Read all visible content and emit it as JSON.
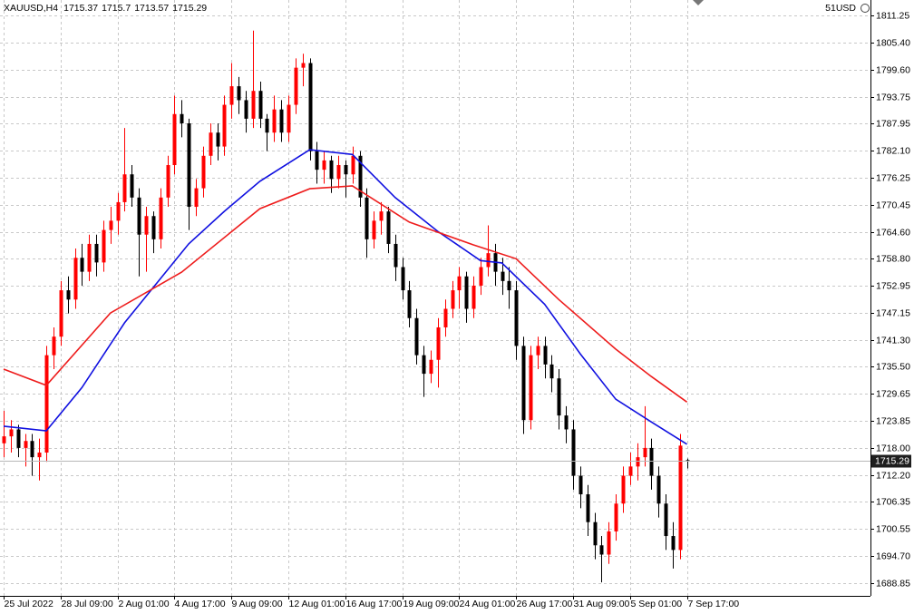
{
  "chart_data": {
    "type": "candlestick",
    "symbol": "XAUUSD,H4",
    "currency_label": "51USD",
    "up_color": "#ff0000",
    "down_color": "#000000",
    "ylim": [
      1686.1,
      1814.6
    ],
    "yticks": [
      1811.25,
      {
        "value": 1805.4,
        "label": "1805.40"
      },
      {
        "value": 1799.6,
        "label": "1799.60"
      },
      1793.75,
      1787.95,
      {
        "value": 1782.1,
        "label": "1782.10"
      },
      1776.25,
      1770.45,
      {
        "value": 1764.6,
        "label": "1764.60"
      },
      {
        "value": 1758.8,
        "label": "1758.80"
      },
      1752.95,
      1747.15,
      {
        "value": 1741.3,
        "label": "1741.30"
      },
      {
        "value": 1735.5,
        "label": "1735.50"
      },
      1729.65,
      1723.85,
      {
        "value": 1718,
        "label": "1718.00"
      },
      {
        "value": 1712.2,
        "label": "1712.20"
      },
      1706.35,
      1700.55,
      {
        "value": 1694.7,
        "label": "1694.70"
      },
      1688.85
    ],
    "grid": true,
    "categories": [
      "25 Jul 2022",
      null,
      null,
      null,
      null,
      null,
      null,
      null,
      "28 Jul 09:00",
      null,
      null,
      null,
      null,
      null,
      null,
      null,
      "2 Aug 01:00",
      null,
      null,
      null,
      null,
      null,
      null,
      null,
      "4 Aug 17:00",
      null,
      null,
      null,
      null,
      null,
      null,
      null,
      "9 Aug 09:00",
      null,
      null,
      null,
      null,
      null,
      null,
      null,
      "12 Aug 01:00",
      null,
      null,
      null,
      null,
      null,
      null,
      null,
      "16 Aug 17:00",
      null,
      null,
      null,
      null,
      null,
      null,
      null,
      "19 Aug 09:00",
      null,
      null,
      null,
      null,
      null,
      null,
      null,
      "24 Aug 01:00",
      null,
      null,
      null,
      null,
      null,
      null,
      null,
      "26 Aug 17:00",
      null,
      null,
      null,
      null,
      null,
      null,
      null,
      "31 Aug 09:00",
      null,
      null,
      null,
      null,
      null,
      null,
      null,
      "5 Sep 01:00",
      null,
      null,
      null,
      null,
      null,
      null,
      null,
      "7 Sep 17:00"
    ],
    "candles": [
      [
        1719,
        1726,
        1716,
        1720.5
      ],
      [
        1720.5,
        1724,
        1717,
        1722
      ],
      [
        1722,
        1723,
        1716,
        1718
      ],
      [
        1718,
        1721,
        1714,
        1719.5
      ],
      [
        1719.5,
        1721,
        1712,
        1716
      ],
      [
        1716,
        1720,
        1711,
        1717
      ],
      [
        1717,
        1740,
        1715,
        1738
      ],
      [
        1738,
        1744,
        1735,
        1742
      ],
      [
        1742,
        1754,
        1740,
        1752
      ],
      [
        1752,
        1755,
        1747,
        1750
      ],
      [
        1750,
        1761,
        1748,
        1759
      ],
      [
        1759,
        1762,
        1753,
        1756
      ],
      [
        1756,
        1764,
        1754,
        1762
      ],
      [
        1762,
        1764,
        1755,
        1758
      ],
      [
        1758,
        1767,
        1756,
        1765
      ],
      [
        1765,
        1770,
        1762,
        1767
      ],
      [
        1767,
        1773,
        1764,
        1771
      ],
      [
        1771,
        1787,
        1769,
        1777
      ],
      [
        1777,
        1779,
        1770,
        1772
      ],
      [
        1772,
        1774,
        1755,
        1764
      ],
      [
        1764,
        1770,
        1756,
        1768
      ],
      [
        1768,
        1769,
        1760,
        1763
      ],
      [
        1763,
        1774,
        1761,
        1772
      ],
      [
        1772,
        1781,
        1770,
        1779
      ],
      [
        1779,
        1794,
        1777,
        1790
      ],
      [
        1790,
        1793,
        1785,
        1788
      ],
      [
        1788,
        1789,
        1765,
        1770
      ],
      [
        1770,
        1776,
        1768,
        1774
      ],
      [
        1774,
        1783,
        1772,
        1781
      ],
      [
        1781,
        1788,
        1779,
        1786
      ],
      [
        1786,
        1788,
        1780,
        1783
      ],
      [
        1783,
        1794,
        1781,
        1792
      ],
      [
        1792,
        1801,
        1789,
        1796
      ],
      [
        1796,
        1798,
        1790,
        1793
      ],
      [
        1793,
        1795,
        1786,
        1789
      ],
      [
        1789,
        1808,
        1787,
        1795
      ],
      [
        1795,
        1797,
        1787,
        1789
      ],
      [
        1789,
        1790,
        1782,
        1786
      ],
      [
        1786,
        1794,
        1784,
        1791
      ],
      [
        1791,
        1793,
        1784,
        1786
      ],
      [
        1786,
        1794,
        1784,
        1792
      ],
      [
        1792,
        1802,
        1790,
        1800
      ],
      [
        1800,
        1803,
        1796,
        1801
      ],
      [
        1801,
        1802,
        1780,
        1782
      ],
      [
        1782,
        1784,
        1775,
        1778
      ],
      [
        1778,
        1782,
        1775,
        1780
      ],
      [
        1780,
        1781,
        1773,
        1776
      ],
      [
        1776,
        1781,
        1774,
        1779
      ],
      [
        1779,
        1780,
        1772,
        1777
      ],
      [
        1777,
        1783,
        1775,
        1781
      ],
      [
        1781,
        1782,
        1770,
        1772
      ],
      [
        1772,
        1774,
        1759,
        1763
      ],
      [
        1763,
        1769,
        1761,
        1767
      ],
      [
        1767,
        1771,
        1764,
        1769
      ],
      [
        1769,
        1770,
        1760,
        1762
      ],
      [
        1762,
        1764,
        1754,
        1757
      ],
      [
        1757,
        1759,
        1750,
        1752
      ],
      [
        1752,
        1754,
        1744,
        1746
      ],
      [
        1746,
        1748,
        1736,
        1738
      ],
      [
        1738,
        1740,
        1729,
        1734
      ],
      [
        1734,
        1739,
        1732,
        1737
      ],
      [
        1737,
        1746,
        1731,
        1744
      ],
      [
        1744,
        1750,
        1742,
        1748
      ],
      [
        1748,
        1754,
        1746,
        1752
      ],
      [
        1752,
        1757,
        1748,
        1755
      ],
      [
        1755,
        1756,
        1745,
        1748
      ],
      [
        1748,
        1755,
        1746,
        1753
      ],
      [
        1753,
        1759,
        1751,
        1757
      ],
      [
        1757,
        1766,
        1755,
        1760
      ],
      [
        1760,
        1762,
        1753,
        1756
      ],
      [
        1756,
        1759,
        1751,
        1754
      ],
      [
        1754,
        1757,
        1748,
        1752
      ],
      [
        1752,
        1754,
        1737,
        1740
      ],
      [
        1740,
        1742,
        1721,
        1724
      ],
      [
        1724,
        1740,
        1722,
        1738
      ],
      [
        1738,
        1742,
        1735,
        1740
      ],
      [
        1740,
        1742,
        1733,
        1736
      ],
      [
        1736,
        1738,
        1730,
        1733
      ],
      [
        1733,
        1735,
        1722,
        1725
      ],
      [
        1725,
        1727,
        1719,
        1722
      ],
      [
        1722,
        1724,
        1709,
        1712
      ],
      [
        1712,
        1714,
        1705,
        1708
      ],
      [
        1708,
        1710,
        1699,
        1702
      ],
      [
        1702,
        1704,
        1694,
        1697
      ],
      [
        1697,
        1699,
        1689,
        1695
      ],
      [
        1695,
        1702,
        1693,
        1700
      ],
      [
        1700,
        1708,
        1698,
        1706
      ],
      [
        1706,
        1714,
        1704,
        1712
      ],
      [
        1712,
        1717,
        1710,
        1714
      ],
      [
        1714,
        1719,
        1711,
        1716
      ],
      [
        1716,
        1727,
        1714,
        1718
      ],
      [
        1718,
        1720,
        1709,
        1712
      ],
      [
        1712,
        1714,
        1703,
        1706
      ],
      [
        1706,
        1708,
        1696,
        1699
      ],
      [
        1699,
        1702,
        1692,
        1696
      ],
      [
        1696,
        1721,
        1694,
        1718.5
      ],
      [
        1715.37,
        1715.7,
        1713.57,
        1715.29
      ]
    ],
    "moving_averages": [
      {
        "color": "#1010e0",
        "x": [
          0,
          6,
          11,
          17,
          26,
          31,
          36,
          43,
          49,
          55,
          61,
          67,
          70,
          76,
          81,
          86,
          91,
          96
        ],
        "values": [
          1722.7,
          1721.7,
          1731,
          1745,
          1762,
          1769,
          1775.5,
          1782.3,
          1781.3,
          1772,
          1764.7,
          1758.4,
          1757.9,
          1749,
          1738.3,
          1728.5,
          1723.6,
          1718.8
        ]
      },
      {
        "color": "#ee1c1c",
        "x": [
          0,
          6,
          15,
          25,
          36,
          43,
          49,
          57,
          66,
          72,
          78,
          86,
          91,
          96
        ],
        "values": [
          1735,
          1731.5,
          1747.1,
          1755.9,
          1769.6,
          1773.9,
          1774.5,
          1766.7,
          1761.8,
          1758.8,
          1750,
          1739.3,
          1733.4,
          1727.9
        ]
      }
    ]
  }
}
